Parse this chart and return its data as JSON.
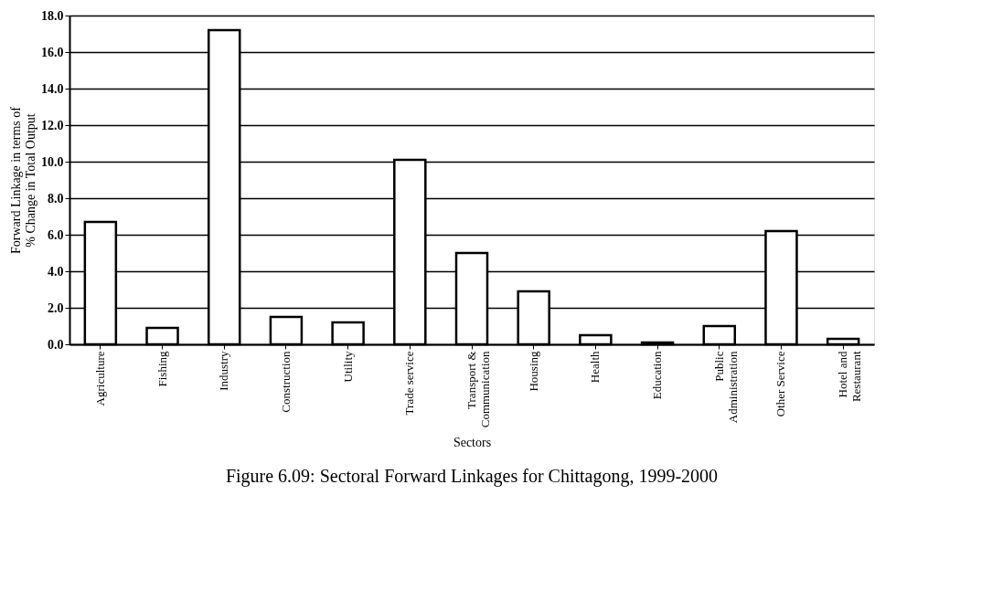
{
  "chart_data": {
    "type": "bar",
    "title": "Figure 6.09: Sectoral Forward Linkages for Chittagong, 1999-2000",
    "xlabel": "Sectors",
    "ylabel": "Forward Linkage in terms of\n% Change in Total Output",
    "categories": [
      "Agriculture",
      "Fishing",
      "Industry",
      "Construction",
      "Utility",
      "Trade service",
      "Transport &\nCommunication",
      "Housing",
      "Health",
      "Education",
      "Public\nAdministration",
      "Other Service",
      "Hotel and\nRestaurant"
    ],
    "values": [
      6.7,
      0.9,
      17.2,
      1.5,
      1.2,
      10.1,
      5.0,
      2.9,
      0.5,
      0.1,
      1.0,
      6.2,
      0.3
    ],
    "color": "#ffffff",
    "ylim": [
      0,
      18
    ],
    "yticks": [
      {
        "value": 0,
        "label": "0.0"
      },
      {
        "value": 2,
        "label": "2.0"
      },
      {
        "value": 4,
        "label": "4.0"
      },
      {
        "value": 6,
        "label": "6.0"
      },
      {
        "value": 8,
        "label": "8.0"
      },
      {
        "value": 10,
        "label": "10.0"
      },
      {
        "value": 12,
        "label": "12.0"
      },
      {
        "value": 14,
        "label": "14.0"
      },
      {
        "value": 16,
        "label": "16.0"
      },
      {
        "value": 18,
        "label": "18.0"
      }
    ],
    "grid": "y"
  }
}
